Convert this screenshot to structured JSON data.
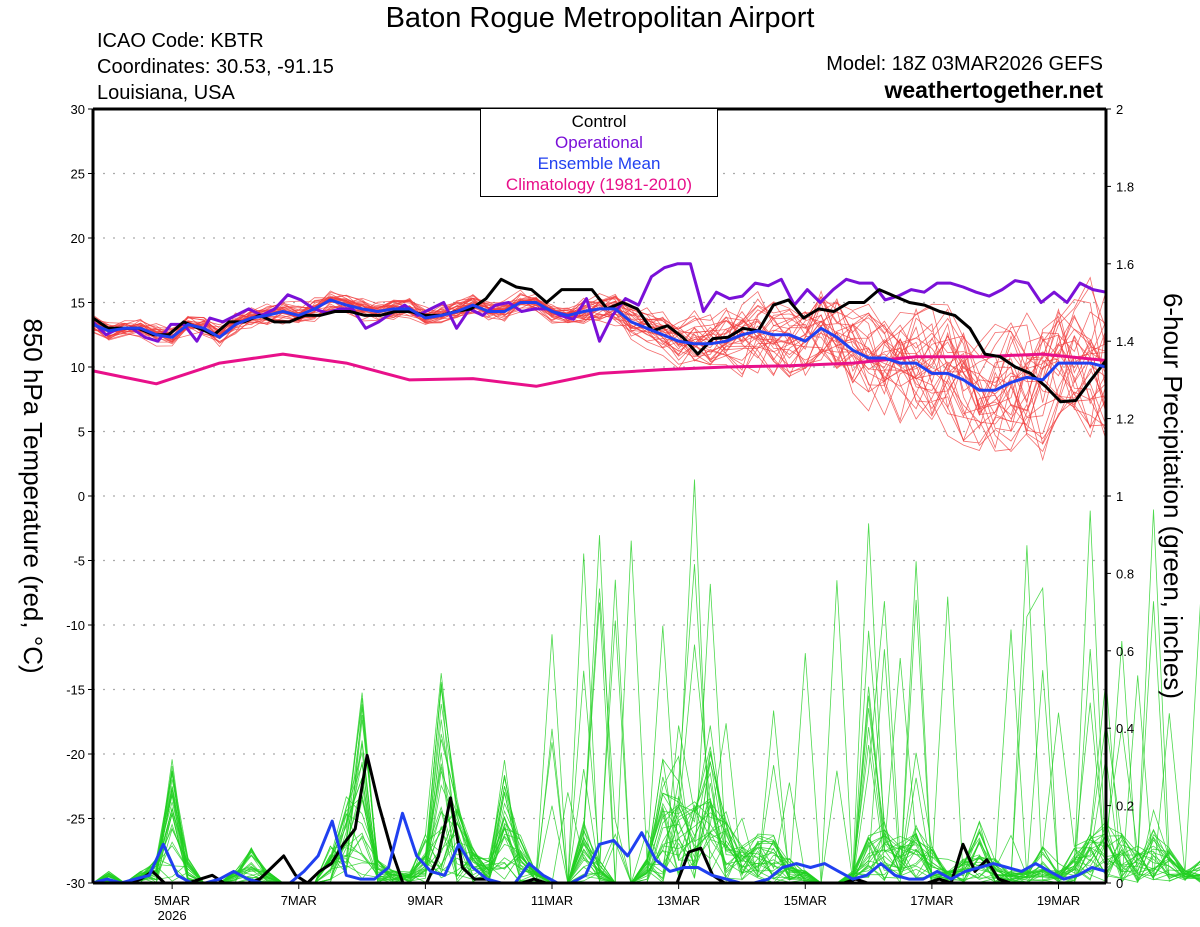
{
  "header": {
    "title": "Baton Rogue Metropolitan Airport",
    "icao": "ICAO Code: KBTR",
    "coordinates": "Coordinates: 30.53, -91.15",
    "region": "Louisiana, USA",
    "model": "Model: 18Z 03MAR2026 GEFS",
    "site": "weathertogether.net"
  },
  "legend": {
    "control": "Control",
    "operational": "Operational",
    "ensemble_mean": "Ensemble Mean",
    "climatology": "Climatology (1981-2010)"
  },
  "colors": {
    "control": "#000000",
    "operational": "#7a10d8",
    "ensemble_mean": "#2040f0",
    "climatology": "#e8108a",
    "members_temp": "#f03c3c",
    "members_precip": "#20d020",
    "site": "#1aa3f5",
    "grid": "#aaaaaa"
  },
  "chart_data": {
    "type": "line",
    "x_unit": "6-hourly steps from 18Z 03MAR2026 to 18Z 19MAR2026",
    "x_start": "03MAR2026 18Z",
    "x_step_hours": 6,
    "xlim_days_from_5MAR": [
      -1.25,
      14.75
    ],
    "x_ticks": [
      {
        "day": 0,
        "label": "5MAR",
        "sublabel": "2026"
      },
      {
        "day": 2,
        "label": "7MAR"
      },
      {
        "day": 4,
        "label": "9MAR"
      },
      {
        "day": 6,
        "label": "11MAR"
      },
      {
        "day": 8,
        "label": "13MAR"
      },
      {
        "day": 10,
        "label": "15MAR"
      },
      {
        "day": 12,
        "label": "17MAR"
      },
      {
        "day": 14,
        "label": "19MAR"
      }
    ],
    "y_left": {
      "label": "850 hPa Temperature (red, °C)",
      "ylim": [
        -30,
        30
      ],
      "ticks": [
        "30",
        "25",
        "20",
        "15",
        "10",
        "5",
        "0",
        "-5",
        "-10",
        "-15",
        "-20",
        "-25",
        "-30"
      ]
    },
    "y_right": {
      "label": "6-hour Precipitation (green, inches)",
      "ylim": [
        0,
        2
      ],
      "ticks": [
        "2",
        "1.8",
        "1.6",
        "1.4",
        "1.2",
        "1",
        "0.8",
        "0.6",
        "0.4",
        "0.2",
        "0"
      ]
    },
    "grid": true,
    "legend_position": "top-center",
    "temperature": {
      "control": [
        13.8,
        13.0,
        13.0,
        13.0,
        12.5,
        12.5,
        13.5,
        13.0,
        12.5,
        13.5,
        13.5,
        14.0,
        13.5,
        13.5,
        14.0,
        14.0,
        14.3,
        14.3,
        14.0,
        14.0,
        14.3,
        14.3,
        14.0,
        14.0,
        14.3,
        14.5,
        15.3,
        16.8,
        16.2,
        16.0,
        15.0,
        16.0,
        16.0,
        16.0,
        14.5,
        15.0,
        14.5,
        12.8,
        13.2,
        12.3,
        11.0,
        12.2,
        12.3,
        13.0,
        12.8,
        14.8,
        15.2,
        13.8,
        14.5,
        14.3,
        15.0,
        15.0,
        16.0,
        15.5,
        15.0,
        14.8,
        14.3,
        14.0,
        13.0,
        11.0,
        10.8,
        10.0,
        9.5,
        8.5,
        7.3,
        7.4,
        9.0,
        10.5
      ],
      "operational": [
        13.5,
        12.5,
        13.0,
        13.0,
        12.3,
        12.0,
        13.3,
        13.3,
        12.0,
        13.8,
        13.5,
        14.0,
        14.5,
        14.0,
        14.5,
        15.6,
        15.2,
        14.5,
        14.2,
        14.5,
        14.5,
        13.0,
        13.5,
        14.2,
        14.8,
        14.0,
        14.5,
        15.0,
        13.0,
        14.5,
        14.0,
        14.8,
        15.0,
        14.3,
        14.5,
        14.5,
        14.0,
        13.7,
        15.3,
        12.0,
        14.0,
        15.3,
        14.8,
        17.0,
        17.7,
        18.0,
        18.0,
        14.3,
        15.8,
        15.3,
        15.5,
        16.5,
        16.3,
        16.8,
        14.8,
        16.0,
        15.0,
        16.0,
        16.8,
        16.5,
        16.5,
        15.2,
        15.5,
        16.0,
        15.8,
        16.5,
        16.5,
        16.2,
        15.8,
        15.5,
        16.0,
        16.7,
        16.5,
        15.0,
        15.8,
        15.0,
        16.5,
        16.0,
        15.8
      ],
      "ensemble_mean": [
        13.3,
        12.8,
        13.0,
        13.0,
        12.5,
        12.3,
        13.3,
        13.0,
        12.3,
        13.3,
        13.8,
        14.0,
        14.3,
        14.0,
        14.5,
        15.2,
        14.8,
        14.5,
        14.3,
        14.5,
        14.5,
        13.8,
        14.0,
        14.3,
        14.8,
        14.3,
        14.3,
        15.0,
        15.0,
        14.3,
        14.0,
        14.3,
        14.5,
        14.5,
        13.5,
        13.0,
        12.5,
        12.0,
        11.8,
        11.8,
        12.0,
        12.5,
        12.8,
        12.5,
        12.5,
        12.0,
        13.0,
        12.3,
        11.3,
        10.7,
        10.7,
        10.3,
        10.3,
        9.5,
        9.5,
        9.0,
        8.2,
        8.2,
        8.8,
        9.2,
        9.0,
        10.3,
        10.3,
        10.3,
        10.0
      ],
      "climatology_days": [
        -1.25,
        -0.25,
        0.75,
        1.75,
        2.75,
        3.75,
        4.75,
        5.75,
        6.75,
        7.75,
        8.75,
        9.75,
        10.75,
        11.75,
        12.75,
        13.75,
        14.75
      ],
      "climatology": [
        9.7,
        8.7,
        10.3,
        11.0,
        10.3,
        9.0,
        9.1,
        8.5,
        9.5,
        9.8,
        10.0,
        10.1,
        10.3,
        10.8,
        10.8,
        11.0,
        10.5
      ]
    },
    "precipitation": {
      "control": [
        0,
        0,
        0,
        0,
        0.01,
        0.03,
        0,
        0,
        0,
        0.01,
        0.02,
        0,
        0,
        0,
        0.01,
        0.04,
        0.07,
        0.02,
        0,
        0.03,
        0.05,
        0.1,
        0.14,
        0.33,
        0.2,
        0.09,
        0,
        0,
        0,
        0.07,
        0.22,
        0.04,
        0.01,
        0.01,
        0,
        0,
        0,
        0.01,
        0,
        0,
        0,
        0,
        0,
        0,
        0,
        0,
        0,
        0,
        0,
        0,
        0.08,
        0.09,
        0.02,
        0,
        0,
        0,
        0,
        0,
        0,
        0,
        0,
        0,
        0,
        0,
        0.01,
        0,
        0,
        0,
        0,
        0,
        0,
        0.01,
        0,
        0.1,
        0.03,
        0.06,
        0.01,
        0,
        0,
        0,
        0,
        0,
        0,
        0,
        0,
        0
      ],
      "ensemble_mean": [
        0,
        0.01,
        0,
        0.01,
        0.02,
        0.1,
        0.02,
        0,
        0,
        0.01,
        0.03,
        0.01,
        0,
        0,
        0,
        0.03,
        0.07,
        0.16,
        0.02,
        0.01,
        0.01,
        0.04,
        0.18,
        0.07,
        0.03,
        0.02,
        0.1,
        0.04,
        0.01,
        0,
        0,
        0.05,
        0.02,
        0,
        0,
        0.02,
        0.1,
        0.11,
        0.07,
        0.13,
        0.06,
        0.03,
        0.04,
        0.04,
        0.02,
        0.01,
        0,
        0,
        0.01,
        0.04,
        0.05,
        0.04,
        0.05,
        0.03,
        0.01,
        0.02,
        0.05,
        0.02,
        0.01,
        0.01,
        0.03,
        0.01,
        0.03,
        0.04,
        0.05,
        0.04,
        0.03,
        0.05,
        0.03,
        0.01,
        0.02,
        0.04,
        0.03
      ]
    }
  }
}
